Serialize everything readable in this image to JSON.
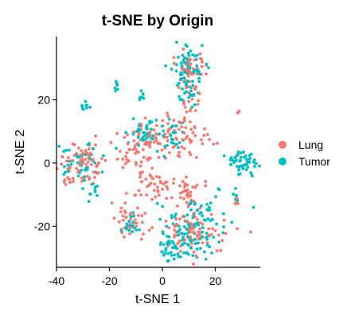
{
  "chart_data": {
    "type": "scatter",
    "title": "t-SNE by Origin",
    "xlabel": "t-SNE 1",
    "ylabel": "t-SNE 2",
    "xlim": [
      -40,
      37
    ],
    "ylim": [
      -33,
      40
    ],
    "xticks": [
      -40,
      -20,
      0,
      20
    ],
    "yticks": [
      -20,
      0,
      20
    ],
    "grid": false,
    "legend_position": "right",
    "series": [
      {
        "name": "Lung",
        "color": "#F8766D",
        "clusters": [
          {
            "cx": 10,
            "cy": 30,
            "sx": 3.5,
            "sy": 3,
            "n": 40
          },
          {
            "cx": 10,
            "cy": 20,
            "sx": 2.5,
            "sy": 3,
            "n": 20
          },
          {
            "cx": 6,
            "cy": 8,
            "sx": 6,
            "sy": 4,
            "n": 70
          },
          {
            "cx": -30,
            "cy": 0,
            "sx": 5,
            "sy": 4,
            "n": 80
          },
          {
            "cx": -8,
            "cy": 5,
            "sx": 4,
            "sy": 4,
            "n": 55
          },
          {
            "cx": -3,
            "cy": -7,
            "sx": 4,
            "sy": 3,
            "n": 40
          },
          {
            "cx": 10,
            "cy": -10,
            "sx": 3,
            "sy": 3,
            "n": 35
          },
          {
            "cx": 12,
            "cy": -22,
            "sx": 7,
            "sy": 4,
            "n": 80
          },
          {
            "cx": -12,
            "cy": -18,
            "sx": 3,
            "sy": 3,
            "n": 35
          },
          {
            "cx": 28,
            "cy": -12,
            "sx": 1,
            "sy": 1,
            "n": 5
          },
          {
            "cx": 28,
            "cy": 16,
            "sx": 0.5,
            "sy": 0.5,
            "n": 3
          }
        ]
      },
      {
        "name": "Tumor",
        "color": "#00BFC4",
        "clusters": [
          {
            "cx": 10,
            "cy": 30,
            "sx": 3.5,
            "sy": 3.5,
            "n": 70
          },
          {
            "cx": 9,
            "cy": 22,
            "sx": 2,
            "sy": 2,
            "n": 20
          },
          {
            "cx": 30,
            "cy": 0,
            "sx": 3,
            "sy": 2,
            "n": 55
          },
          {
            "cx": -32,
            "cy": 0,
            "sx": 5,
            "sy": 3,
            "n": 45
          },
          {
            "cx": -7,
            "cy": 10,
            "sx": 2.5,
            "sy": 2,
            "n": 35
          },
          {
            "cx": 3,
            "cy": 8,
            "sx": 4,
            "sy": 3,
            "n": 25
          },
          {
            "cx": 12,
            "cy": -20,
            "sx": 6,
            "sy": 5,
            "n": 110
          },
          {
            "cx": 3,
            "cy": -27,
            "sx": 3,
            "sy": 2,
            "n": 35
          },
          {
            "cx": -12,
            "cy": -20,
            "sx": 1.5,
            "sy": 1.5,
            "n": 20
          },
          {
            "cx": -29,
            "cy": 18,
            "sx": 1,
            "sy": 0.8,
            "n": 8
          },
          {
            "cx": -18,
            "cy": 24,
            "sx": 1,
            "sy": 1,
            "n": 6
          },
          {
            "cx": -8,
            "cy": 21,
            "sx": 0.8,
            "sy": 0.8,
            "n": 6
          },
          {
            "cx": -26,
            "cy": -10,
            "sx": 1,
            "sy": 1.5,
            "n": 8
          },
          {
            "cx": 28,
            "cy": -11,
            "sx": 1,
            "sy": 1,
            "n": 5
          }
        ]
      }
    ]
  }
}
